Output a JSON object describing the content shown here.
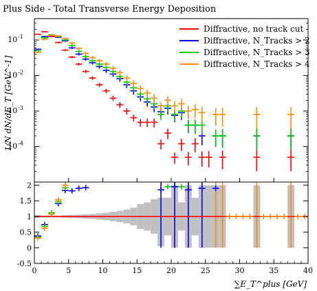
{
  "chart_data": {
    "type": "scatter",
    "title": "Plus Side - Total Transverse Energy Deposition",
    "xlabel": "∑E_T^plus [GeV]",
    "ylabel": "1/N dN/dE_T [GeV^-1]",
    "ratio_ylabel": "",
    "xlim": [
      0,
      40
    ],
    "ylim_log": [
      1e-05,
      0.4
    ],
    "ylim_ratio": [
      -0.5,
      2.1
    ],
    "x_ticks": [
      "0",
      "5",
      "10",
      "15",
      "20",
      "25",
      "30",
      "35",
      "40"
    ],
    "y_ticks_main": [
      "10^-1",
      "10^-2",
      "10^-3",
      "10^-4"
    ],
    "y_ticks_ratio": [
      "2",
      "1.5",
      "1",
      "0.5",
      "0",
      "-0.5"
    ],
    "grid": false,
    "legend_position": "top-right",
    "bin_width": 1.0,
    "series": [
      {
        "name": "Diffractive, no track cut",
        "color": "#ff0000",
        "points": [
          {
            "x": 0.5,
            "y": 0.145
          },
          {
            "x": 1.5,
            "y": 0.17
          },
          {
            "x": 2.5,
            "y": 0.125
          },
          {
            "x": 3.5,
            "y": 0.085
          },
          {
            "x": 4.5,
            "y": 0.052
          },
          {
            "x": 5.5,
            "y": 0.033
          },
          {
            "x": 6.5,
            "y": 0.021
          },
          {
            "x": 7.5,
            "y": 0.013
          },
          {
            "x": 8.5,
            "y": 0.0085
          },
          {
            "x": 9.5,
            "y": 0.0055
          },
          {
            "x": 10.5,
            "y": 0.0037
          },
          {
            "x": 11.5,
            "y": 0.0023
          },
          {
            "x": 12.5,
            "y": 0.0015
          },
          {
            "x": 13.5,
            "y": 0.001
          },
          {
            "x": 14.5,
            "y": 0.00065
          },
          {
            "x": 15.5,
            "y": 0.00048
          },
          {
            "x": 16.5,
            "y": 0.00048
          },
          {
            "x": 17.5,
            "y": 0.00048
          },
          {
            "x": 18.5,
            "y": 0.00012
          },
          {
            "x": 19.5,
            "y": 0.00024
          },
          {
            "x": 20.5,
            "y": 5e-05
          },
          {
            "x": 21.5,
            "y": 0.00012
          },
          {
            "x": 22.5,
            "y": 5e-05
          },
          {
            "x": 23.5,
            "y": 0.00012
          },
          {
            "x": 24.5,
            "y": 5e-05
          },
          {
            "x": 25.5,
            "y": 5e-05
          },
          {
            "x": 27.5,
            "y": 5e-05
          },
          {
            "x": 32.5,
            "y": 5e-05
          },
          {
            "x": 37.5,
            "y": 5e-05
          }
        ]
      },
      {
        "name": "Diffractive, N_Tracks > 2",
        "color": "#0000ff",
        "points": [
          {
            "x": 0.5,
            "y": 0.055
          },
          {
            "x": 1.5,
            "y": 0.125
          },
          {
            "x": 2.5,
            "y": 0.135
          },
          {
            "x": 3.5,
            "y": 0.12
          },
          {
            "x": 4.5,
            "y": 0.095
          },
          {
            "x": 5.5,
            "y": 0.06
          },
          {
            "x": 6.5,
            "y": 0.04
          },
          {
            "x": 7.5,
            "y": 0.029
          },
          {
            "x": 8.5,
            "y": 0.023
          },
          {
            "x": 9.5,
            "y": 0.018
          },
          {
            "x": 10.5,
            "y": 0.014
          },
          {
            "x": 11.5,
            "y": 0.011
          },
          {
            "x": 12.5,
            "y": 0.0082
          },
          {
            "x": 13.5,
            "y": 0.0055
          },
          {
            "x": 14.5,
            "y": 0.0037
          },
          {
            "x": 15.5,
            "y": 0.0025
          },
          {
            "x": 16.5,
            "y": 0.0018
          },
          {
            "x": 17.5,
            "y": 0.0013
          },
          {
            "x": 18.5,
            "y": 0.00095
          },
          {
            "x": 19.5,
            "y": 0.0012
          },
          {
            "x": 20.5,
            "y": 0.00075
          },
          {
            "x": 21.5,
            "y": 0.0009
          },
          {
            "x": 22.5,
            "y": 0.0004
          },
          {
            "x": 23.5,
            "y": 0.0004
          },
          {
            "x": 24.5,
            "y": 0.0002
          },
          {
            "x": 26.5,
            "y": 0.0002
          },
          {
            "x": 27.5,
            "y": 0.0002
          },
          {
            "x": 32.5,
            "y": 0.0002
          },
          {
            "x": 37.5,
            "y": 0.0002
          }
        ]
      },
      {
        "name": "Diffractive, N_Tracks > 3",
        "color": "#00cc00",
        "points": [
          {
            "x": 0.5,
            "y": 0.05
          },
          {
            "x": 1.5,
            "y": 0.115
          },
          {
            "x": 2.5,
            "y": 0.14
          },
          {
            "x": 3.5,
            "y": 0.125
          },
          {
            "x": 4.5,
            "y": 0.1
          },
          {
            "x": 5.5,
            "y": 0.07
          },
          {
            "x": 6.5,
            "y": 0.048
          },
          {
            "x": 7.5,
            "y": 0.034
          },
          {
            "x": 8.5,
            "y": 0.026
          },
          {
            "x": 9.5,
            "y": 0.021
          },
          {
            "x": 10.5,
            "y": 0.017
          },
          {
            "x": 11.5,
            "y": 0.013
          },
          {
            "x": 12.5,
            "y": 0.0095
          },
          {
            "x": 13.5,
            "y": 0.0065
          },
          {
            "x": 14.5,
            "y": 0.0045
          },
          {
            "x": 15.5,
            "y": 0.003
          },
          {
            "x": 16.5,
            "y": 0.0022
          },
          {
            "x": 17.5,
            "y": 0.0016
          },
          {
            "x": 18.5,
            "y": 0.0008
          },
          {
            "x": 19.5,
            "y": 0.0014
          },
          {
            "x": 20.5,
            "y": 0.0008
          },
          {
            "x": 21.5,
            "y": 0.001
          },
          {
            "x": 22.5,
            "y": 0.0004
          },
          {
            "x": 23.5,
            "y": 0.0004
          },
          {
            "x": 24.5,
            "y": 0.0004
          },
          {
            "x": 26.5,
            "y": 0.0002
          },
          {
            "x": 27.5,
            "y": 0.0002
          },
          {
            "x": 32.5,
            "y": 0.0002
          },
          {
            "x": 37.5,
            "y": 0.0002
          }
        ]
      },
      {
        "name": "Diffractive, N_Tracks > 4",
        "color": "#ff8c00",
        "points": [
          {
            "x": 0.5,
            "y": 0.045
          },
          {
            "x": 1.5,
            "y": 0.105
          },
          {
            "x": 2.5,
            "y": 0.135
          },
          {
            "x": 3.5,
            "y": 0.13
          },
          {
            "x": 4.5,
            "y": 0.11
          },
          {
            "x": 5.5,
            "y": 0.082
          },
          {
            "x": 6.5,
            "y": 0.058
          },
          {
            "x": 7.5,
            "y": 0.042
          },
          {
            "x": 8.5,
            "y": 0.032
          },
          {
            "x": 9.5,
            "y": 0.026
          },
          {
            "x": 10.5,
            "y": 0.021
          },
          {
            "x": 11.5,
            "y": 0.016
          },
          {
            "x": 12.5,
            "y": 0.012
          },
          {
            "x": 13.5,
            "y": 0.0085
          },
          {
            "x": 14.5,
            "y": 0.006
          },
          {
            "x": 15.5,
            "y": 0.0043
          },
          {
            "x": 16.5,
            "y": 0.0032
          },
          {
            "x": 17.5,
            "y": 0.0023
          },
          {
            "x": 18.5,
            "y": 0.0014
          },
          {
            "x": 19.5,
            "y": 0.002
          },
          {
            "x": 20.5,
            "y": 0.0014
          },
          {
            "x": 21.5,
            "y": 0.0016
          },
          {
            "x": 22.5,
            "y": 0.001
          },
          {
            "x": 23.5,
            "y": 0.0011
          },
          {
            "x": 24.5,
            "y": 0.0009
          },
          {
            "x": 26.5,
            "y": 0.0008
          },
          {
            "x": 27.5,
            "y": 0.0008
          },
          {
            "x": 32.5,
            "y": 0.0008
          },
          {
            "x": 37.5,
            "y": 0.0008
          }
        ]
      }
    ],
    "ratio": {
      "band_color": "#c0c0c0",
      "band": [
        {
          "x": 0.5,
          "lo": 0.96,
          "hi": 1.04
        },
        {
          "x": 1.5,
          "lo": 0.97,
          "hi": 1.03
        },
        {
          "x": 2.5,
          "lo": 0.97,
          "hi": 1.03
        },
        {
          "x": 3.5,
          "lo": 0.97,
          "hi": 1.03
        },
        {
          "x": 4.5,
          "lo": 0.96,
          "hi": 1.04
        },
        {
          "x": 5.5,
          "lo": 0.95,
          "hi": 1.05
        },
        {
          "x": 6.5,
          "lo": 0.94,
          "hi": 1.06
        },
        {
          "x": 7.5,
          "lo": 0.93,
          "hi": 1.07
        },
        {
          "x": 8.5,
          "lo": 0.92,
          "hi": 1.08
        },
        {
          "x": 9.5,
          "lo": 0.9,
          "hi": 1.1
        },
        {
          "x": 10.5,
          "lo": 0.88,
          "hi": 1.12
        },
        {
          "x": 11.5,
          "lo": 0.85,
          "hi": 1.15
        },
        {
          "x": 12.5,
          "lo": 0.82,
          "hi": 1.18
        },
        {
          "x": 13.5,
          "lo": 0.78,
          "hi": 1.22
        },
        {
          "x": 14.5,
          "lo": 0.72,
          "hi": 1.28
        },
        {
          "x": 15.5,
          "lo": 0.6,
          "hi": 1.4
        },
        {
          "x": 16.5,
          "lo": 0.55,
          "hi": 1.45
        },
        {
          "x": 17.5,
          "lo": 0.45,
          "hi": 1.55
        },
        {
          "x": 18.5,
          "lo": 0.05,
          "hi": 1.6
        },
        {
          "x": 19.5,
          "lo": 0.4,
          "hi": 1.6
        },
        {
          "x": 20.5,
          "lo": 0.0,
          "hi": 2.0
        },
        {
          "x": 21.5,
          "lo": 0.55,
          "hi": 1.45
        },
        {
          "x": 22.5,
          "lo": 0.0,
          "hi": 2.0
        },
        {
          "x": 23.5,
          "lo": 0.4,
          "hi": 1.6
        },
        {
          "x": 24.5,
          "lo": 0.0,
          "hi": 2.0
        },
        {
          "x": 25.5,
          "lo": 0.0,
          "hi": 2.0
        },
        {
          "x": 26.5,
          "lo": 0.0,
          "hi": 2.0
        },
        {
          "x": 27.5,
          "lo": 0.0,
          "hi": 2.0
        },
        {
          "x": 32.5,
          "lo": 0.0,
          "hi": 2.0
        },
        {
          "x": 37.5,
          "lo": 0.0,
          "hi": 2.0
        }
      ],
      "series": [
        {
          "color": "#ff0000",
          "points": [
            {
              "x": 0.5,
              "y": 1.0
            },
            {
              "x": 1.5,
              "y": 1.0
            },
            {
              "x": 2.5,
              "y": 1.0
            },
            {
              "x": 3.5,
              "y": 1.0
            },
            {
              "x": 4.5,
              "y": 1.0
            },
            {
              "x": 5.5,
              "y": 1.0
            },
            {
              "x": 6.5,
              "y": 1.0
            },
            {
              "x": 7.5,
              "y": 1.0
            },
            {
              "x": 8.5,
              "y": 1.0
            },
            {
              "x": 9.5,
              "y": 1.0
            },
            {
              "x": 10.5,
              "y": 1.0
            },
            {
              "x": 11.5,
              "y": 1.0
            },
            {
              "x": 12.5,
              "y": 1.0
            },
            {
              "x": 13.5,
              "y": 1.0
            },
            {
              "x": 14.5,
              "y": 1.0
            },
            {
              "x": 15.5,
              "y": 1.0
            },
            {
              "x": 16.5,
              "y": 1.0
            },
            {
              "x": 17.5,
              "y": 1.0
            },
            {
              "x": 18.5,
              "y": 1.0
            },
            {
              "x": 19.5,
              "y": 1.0
            },
            {
              "x": 20.5,
              "y": 1.0
            },
            {
              "x": 21.5,
              "y": 1.0
            },
            {
              "x": 22.5,
              "y": 1.0
            },
            {
              "x": 23.5,
              "y": 1.0
            },
            {
              "x": 24.5,
              "y": 1.0
            },
            {
              "x": 25.5,
              "y": 1.0
            },
            {
              "x": 26.5,
              "y": 1.0
            },
            {
              "x": 27.5,
              "y": 1.0
            },
            {
              "x": 28.5,
              "y": 1.0
            },
            {
              "x": 29.5,
              "y": 1.0
            },
            {
              "x": 30.5,
              "y": 1.0
            },
            {
              "x": 31.5,
              "y": 1.0
            },
            {
              "x": 32.5,
              "y": 1.0
            },
            {
              "x": 33.5,
              "y": 1.0
            },
            {
              "x": 34.5,
              "y": 1.0
            },
            {
              "x": 35.5,
              "y": 1.0
            },
            {
              "x": 36.5,
              "y": 1.0
            },
            {
              "x": 37.5,
              "y": 1.0
            },
            {
              "x": 38.5,
              "y": 1.0
            },
            {
              "x": 39.5,
              "y": 1.0
            }
          ]
        },
        {
          "color": "#0000ff",
          "points": [
            {
              "x": 0.5,
              "y": 0.38
            },
            {
              "x": 1.5,
              "y": 0.74
            },
            {
              "x": 2.5,
              "y": 1.08
            },
            {
              "x": 3.5,
              "y": 1.41
            },
            {
              "x": 4.5,
              "y": 1.83
            },
            {
              "x": 5.5,
              "y": 1.82
            },
            {
              "x": 6.5,
              "y": 1.9
            },
            {
              "x": 7.5,
              "y": 1.92
            },
            {
              "x": 18.5,
              "y": 1.85
            },
            {
              "x": 20.5,
              "y": 1.95
            },
            {
              "x": 22.5,
              "y": 1.85
            },
            {
              "x": 24.5,
              "y": 1.9
            },
            {
              "x": 26.5,
              "y": 1.9
            }
          ]
        },
        {
          "color": "#00cc00",
          "points": [
            {
              "x": 0.5,
              "y": 0.34
            },
            {
              "x": 1.5,
              "y": 0.68
            },
            {
              "x": 2.5,
              "y": 1.12
            },
            {
              "x": 3.5,
              "y": 1.47
            },
            {
              "x": 4.5,
              "y": 1.92
            },
            {
              "x": 19.5,
              "y": 1.95
            },
            {
              "x": 21.5,
              "y": 1.95
            }
          ]
        },
        {
          "color": "#ff8c00",
          "points": [
            {
              "x": 0.5,
              "y": 0.31
            },
            {
              "x": 1.5,
              "y": 0.62
            },
            {
              "x": 2.5,
              "y": 1.08
            },
            {
              "x": 3.5,
              "y": 1.53
            },
            {
              "x": 4.5,
              "y": 2.0
            },
            {
              "x": 28.5,
              "y": 1.0
            },
            {
              "x": 29.5,
              "y": 1.0
            },
            {
              "x": 30.5,
              "y": 1.0
            },
            {
              "x": 31.5,
              "y": 1.0
            },
            {
              "x": 33.5,
              "y": 1.0
            },
            {
              "x": 34.5,
              "y": 1.0
            },
            {
              "x": 35.5,
              "y": 1.0
            },
            {
              "x": 36.5,
              "y": 1.0
            },
            {
              "x": 38.5,
              "y": 1.0
            },
            {
              "x": 39.5,
              "y": 1.0
            }
          ]
        }
      ],
      "vertical_lines": [
        {
          "x": 20.5,
          "color": "#ff8c00"
        },
        {
          "x": 22.5,
          "color": "#ff8c00"
        },
        {
          "x": 26.5,
          "color": "#ff8c00"
        },
        {
          "x": 27.5,
          "color": "#ff8c00"
        },
        {
          "x": 32.5,
          "color": "#ff8c00"
        },
        {
          "x": 37.5,
          "color": "#ff8c00"
        },
        {
          "x": 18.5,
          "color": "#0000ff"
        },
        {
          "x": 20.5,
          "color": "#0000ff"
        },
        {
          "x": 22.5,
          "color": "#0000ff"
        },
        {
          "x": 24.5,
          "color": "#0000ff"
        }
      ]
    }
  }
}
